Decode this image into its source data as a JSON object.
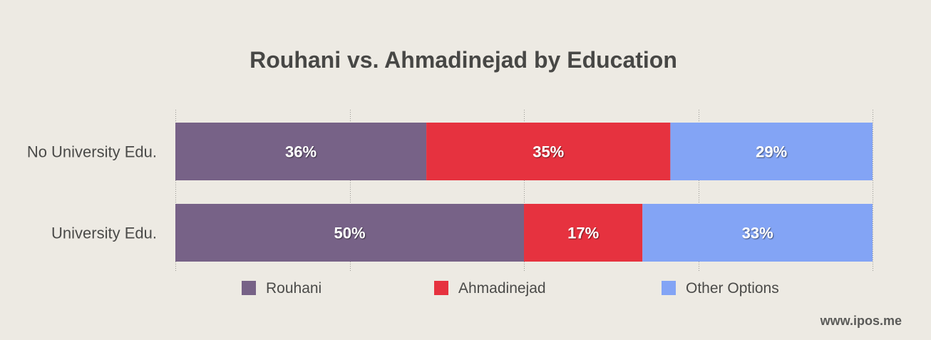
{
  "chart_data": {
    "type": "bar",
    "orientation": "horizontal",
    "stacked": true,
    "title": "Rouhani vs. Ahmadinejad by Education",
    "categories": [
      "No University Edu.",
      "University Edu."
    ],
    "series": [
      {
        "name": "Rouhani",
        "values": [
          36,
          50
        ],
        "labels": [
          "36%",
          "50%"
        ],
        "color": "#776287"
      },
      {
        "name": "Ahmadinejad",
        "values": [
          35,
          17
        ],
        "labels": [
          "35%",
          "17%"
        ],
        "color": "#e6323f"
      },
      {
        "name": "Other Options",
        "values": [
          29,
          33
        ],
        "labels": [
          "29%",
          "33%"
        ],
        "color": "#83a4f5"
      }
    ],
    "xlim": [
      0,
      100
    ],
    "grid": true,
    "legend_position": "bottom"
  },
  "watermark": "www.ipos.me"
}
